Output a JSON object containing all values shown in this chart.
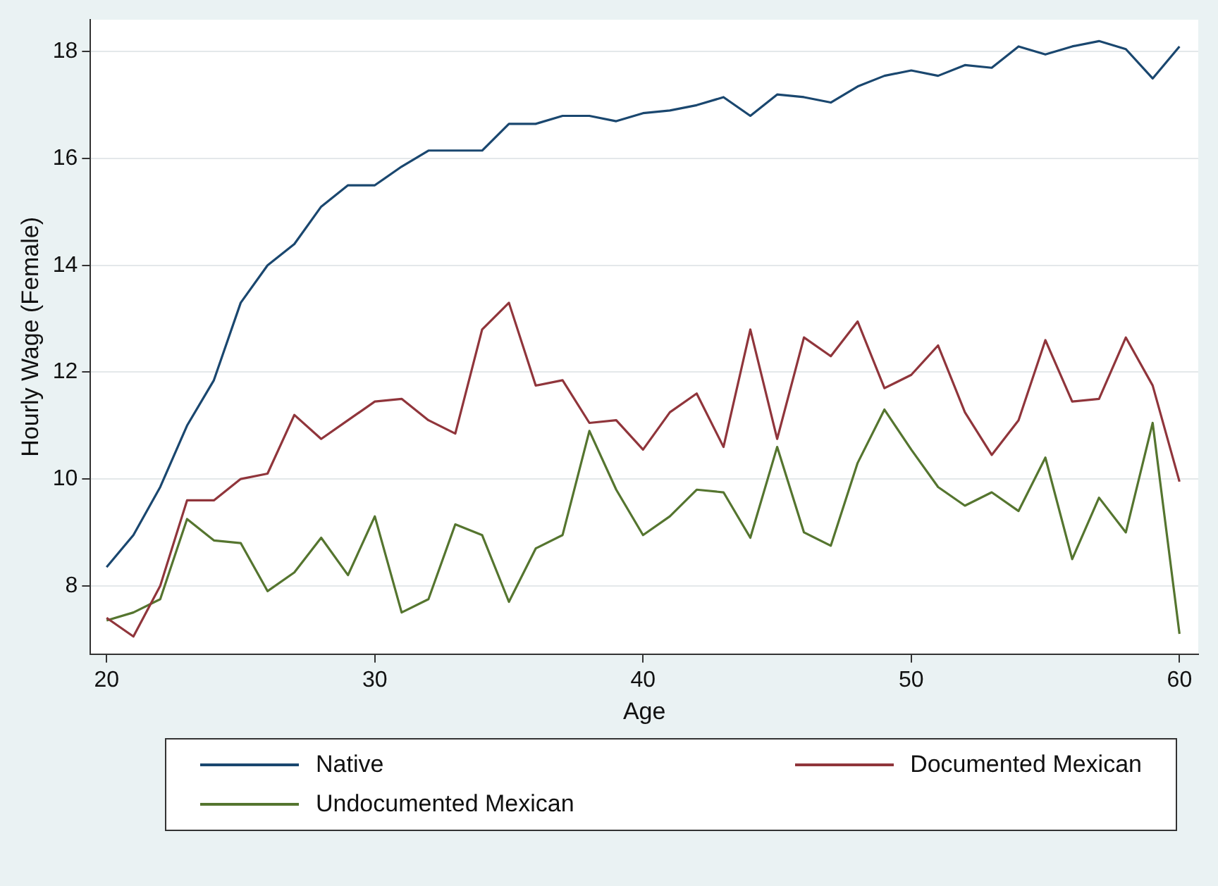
{
  "chart_data": {
    "type": "line",
    "xlabel": "Age",
    "ylabel": "Hourly Wage (Female)",
    "x": [
      20,
      21,
      22,
      23,
      24,
      25,
      26,
      27,
      28,
      29,
      30,
      31,
      32,
      33,
      34,
      35,
      36,
      37,
      38,
      39,
      40,
      41,
      42,
      43,
      44,
      45,
      46,
      47,
      48,
      49,
      50,
      51,
      52,
      53,
      54,
      55,
      56,
      57,
      58,
      59,
      60
    ],
    "xlim": [
      19.4,
      60.7
    ],
    "xticks": [
      20,
      30,
      40,
      50,
      60
    ],
    "ylim": [
      6.72,
      18.6
    ],
    "yticks": [
      8,
      10,
      12,
      14,
      16,
      18
    ],
    "grid": "y",
    "legend": "bottom",
    "marker": "none",
    "line_style": "solid",
    "series": [
      {
        "name": "Native",
        "color": "#1a476f",
        "values": [
          8.35,
          8.95,
          9.85,
          11.0,
          11.85,
          13.3,
          14.0,
          14.4,
          15.1,
          15.5,
          15.5,
          15.85,
          16.15,
          16.15,
          16.15,
          16.65,
          16.65,
          16.8,
          16.8,
          16.7,
          16.85,
          16.9,
          17.0,
          17.15,
          16.8,
          17.2,
          17.15,
          17.05,
          17.35,
          17.55,
          17.65,
          17.55,
          17.75,
          17.7,
          18.1,
          17.95,
          18.1,
          18.2,
          18.05,
          17.5,
          18.1
        ]
      },
      {
        "name": "Documented Mexican",
        "color": "#90353b",
        "values": [
          7.4,
          7.05,
          8.0,
          9.6,
          9.6,
          10.0,
          10.1,
          11.2,
          10.75,
          11.1,
          11.45,
          11.5,
          11.1,
          10.85,
          12.8,
          13.3,
          11.75,
          11.85,
          11.05,
          11.1,
          10.55,
          11.25,
          11.6,
          10.6,
          12.8,
          10.75,
          12.65,
          12.3,
          12.95,
          11.7,
          11.95,
          12.5,
          11.25,
          10.45,
          11.1,
          12.6,
          11.45,
          11.5,
          12.65,
          11.75,
          9.95
        ]
      },
      {
        "name": "Undocumented Mexican",
        "color": "#55752f",
        "values": [
          7.35,
          7.5,
          7.75,
          9.25,
          8.85,
          8.8,
          7.9,
          8.25,
          8.9,
          8.2,
          9.3,
          7.5,
          7.75,
          9.15,
          8.95,
          7.7,
          8.7,
          8.95,
          10.9,
          9.8,
          8.95,
          9.3,
          9.8,
          9.75,
          8.9,
          10.6,
          9.0,
          8.75,
          10.3,
          11.3,
          10.55,
          9.85,
          9.5,
          9.75,
          9.4,
          10.4,
          8.5,
          9.65,
          9.0,
          11.05,
          7.1
        ]
      }
    ]
  }
}
